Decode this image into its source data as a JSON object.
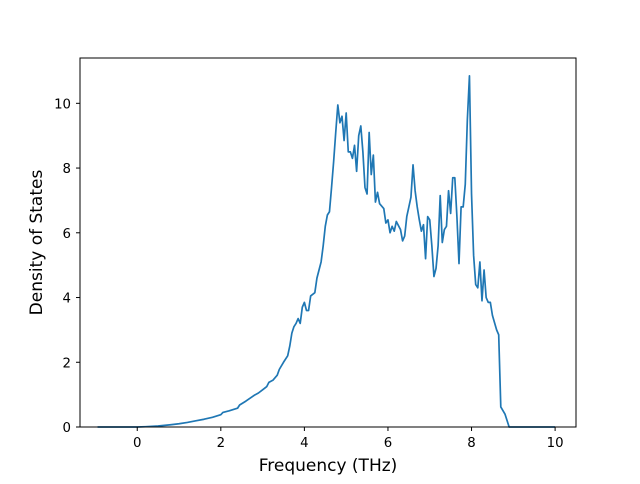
{
  "chart_data": {
    "type": "line",
    "title": "",
    "xlabel": "Frequency (THz)",
    "ylabel": "Density of States",
    "xlim": [
      -1.37,
      10.5
    ],
    "ylim": [
      0,
      11.4
    ],
    "x_ticks": [
      0,
      2,
      4,
      6,
      8,
      10
    ],
    "y_ticks": [
      0,
      2,
      4,
      6,
      8,
      10
    ],
    "x_tick_labels": [
      "0",
      "2",
      "4",
      "6",
      "8",
      "10"
    ],
    "y_tick_labels": [
      "0",
      "2",
      "4",
      "6",
      "8",
      "10"
    ],
    "grid": false,
    "legend": "none",
    "series": [
      {
        "color": "#1f77b4",
        "points": [
          [
            -0.95,
            0
          ],
          [
            0,
            0
          ],
          [
            0.2,
            0.01
          ],
          [
            0.5,
            0.03
          ],
          [
            0.8,
            0.07
          ],
          [
            1.0,
            0.1
          ],
          [
            1.2,
            0.14
          ],
          [
            1.4,
            0.19
          ],
          [
            1.6,
            0.24
          ],
          [
            1.8,
            0.3
          ],
          [
            2.0,
            0.38
          ],
          [
            2.05,
            0.45
          ],
          [
            2.2,
            0.5
          ],
          [
            2.4,
            0.58
          ],
          [
            2.45,
            0.68
          ],
          [
            2.6,
            0.8
          ],
          [
            2.8,
            0.98
          ],
          [
            2.9,
            1.05
          ],
          [
            3.0,
            1.15
          ],
          [
            3.1,
            1.25
          ],
          [
            3.15,
            1.38
          ],
          [
            3.25,
            1.45
          ],
          [
            3.35,
            1.6
          ],
          [
            3.4,
            1.78
          ],
          [
            3.5,
            2.0
          ],
          [
            3.6,
            2.2
          ],
          [
            3.65,
            2.5
          ],
          [
            3.7,
            2.9
          ],
          [
            3.75,
            3.1
          ],
          [
            3.8,
            3.2
          ],
          [
            3.85,
            3.35
          ],
          [
            3.9,
            3.2
          ],
          [
            3.95,
            3.7
          ],
          [
            4.0,
            3.85
          ],
          [
            4.05,
            3.6
          ],
          [
            4.1,
            3.6
          ],
          [
            4.15,
            4.05
          ],
          [
            4.2,
            4.1
          ],
          [
            4.25,
            4.15
          ],
          [
            4.3,
            4.6
          ],
          [
            4.35,
            4.85
          ],
          [
            4.4,
            5.1
          ],
          [
            4.45,
            5.6
          ],
          [
            4.5,
            6.2
          ],
          [
            4.55,
            6.55
          ],
          [
            4.6,
            6.65
          ],
          [
            4.65,
            7.4
          ],
          [
            4.7,
            8.2
          ],
          [
            4.75,
            9.1
          ],
          [
            4.8,
            9.95
          ],
          [
            4.85,
            9.4
          ],
          [
            4.9,
            9.6
          ],
          [
            4.95,
            8.85
          ],
          [
            5.0,
            9.7
          ],
          [
            5.05,
            8.5
          ],
          [
            5.1,
            8.5
          ],
          [
            5.15,
            8.3
          ],
          [
            5.2,
            8.7
          ],
          [
            5.25,
            7.9
          ],
          [
            5.3,
            9.0
          ],
          [
            5.35,
            9.3
          ],
          [
            5.4,
            8.5
          ],
          [
            5.45,
            7.4
          ],
          [
            5.5,
            7.2
          ],
          [
            5.55,
            9.1
          ],
          [
            5.6,
            7.8
          ],
          [
            5.65,
            8.4
          ],
          [
            5.7,
            6.95
          ],
          [
            5.75,
            7.25
          ],
          [
            5.8,
            6.9
          ],
          [
            5.9,
            6.75
          ],
          [
            5.95,
            6.3
          ],
          [
            6.0,
            6.4
          ],
          [
            6.05,
            6.0
          ],
          [
            6.1,
            6.2
          ],
          [
            6.15,
            6.05
          ],
          [
            6.2,
            6.35
          ],
          [
            6.3,
            6.1
          ],
          [
            6.35,
            5.75
          ],
          [
            6.4,
            5.9
          ],
          [
            6.45,
            6.5
          ],
          [
            6.5,
            6.8
          ],
          [
            6.55,
            7.1
          ],
          [
            6.6,
            8.1
          ],
          [
            6.65,
            7.3
          ],
          [
            6.7,
            6.8
          ],
          [
            6.75,
            6.4
          ],
          [
            6.8,
            6.05
          ],
          [
            6.85,
            6.25
          ],
          [
            6.9,
            5.2
          ],
          [
            6.95,
            6.5
          ],
          [
            7.0,
            6.4
          ],
          [
            7.05,
            5.6
          ],
          [
            7.1,
            4.65
          ],
          [
            7.15,
            4.9
          ],
          [
            7.2,
            5.6
          ],
          [
            7.25,
            7.15
          ],
          [
            7.3,
            5.7
          ],
          [
            7.35,
            6.1
          ],
          [
            7.4,
            6.2
          ],
          [
            7.45,
            7.3
          ],
          [
            7.5,
            6.6
          ],
          [
            7.55,
            7.7
          ],
          [
            7.6,
            7.7
          ],
          [
            7.65,
            6.5
          ],
          [
            7.7,
            5.05
          ],
          [
            7.75,
            6.8
          ],
          [
            7.8,
            6.8
          ],
          [
            7.85,
            7.5
          ],
          [
            7.9,
            9.5
          ],
          [
            7.95,
            10.85
          ],
          [
            8.0,
            7.2
          ],
          [
            8.05,
            5.3
          ],
          [
            8.1,
            4.4
          ],
          [
            8.15,
            4.3
          ],
          [
            8.2,
            5.1
          ],
          [
            8.25,
            3.9
          ],
          [
            8.3,
            4.85
          ],
          [
            8.35,
            4.0
          ],
          [
            8.4,
            3.85
          ],
          [
            8.45,
            3.85
          ],
          [
            8.5,
            3.45
          ],
          [
            8.6,
            3.0
          ],
          [
            8.65,
            2.85
          ],
          [
            8.7,
            0.62
          ],
          [
            8.8,
            0.4
          ],
          [
            8.9,
            0
          ],
          [
            9.5,
            0
          ],
          [
            10.0,
            0
          ]
        ]
      }
    ]
  }
}
